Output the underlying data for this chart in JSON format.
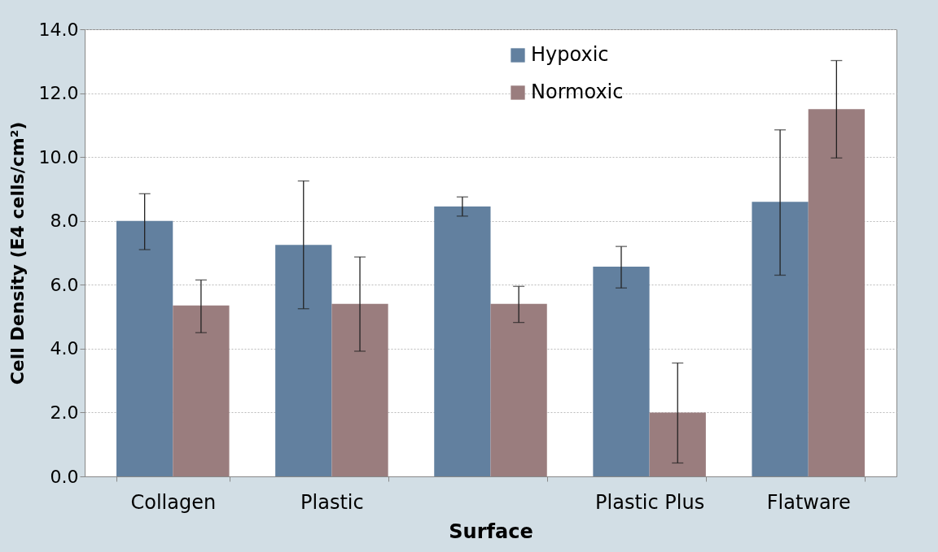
{
  "chart_data": {
    "type": "bar",
    "xlabel": "Surface",
    "ylabel": "Cell Density (E4 cells/cm²)",
    "categories": [
      "Collagen",
      "Plastic",
      null,
      "Plastic Plus",
      "Flatware"
    ],
    "series": [
      {
        "name": "Hypoxic",
        "color": "#62809f",
        "values": [
          8.0,
          7.25,
          8.45,
          6.57,
          8.6
        ],
        "errors": [
          [
            7.1,
            8.85
          ],
          [
            5.25,
            9.25
          ],
          [
            8.15,
            8.75
          ],
          [
            5.9,
            7.2
          ],
          [
            6.3,
            10.85
          ]
        ]
      },
      {
        "name": "Normoxic",
        "color": "#9a7d7e",
        "values": [
          5.35,
          5.4,
          5.4,
          2.0,
          11.5
        ],
        "errors": [
          [
            4.5,
            6.15
          ],
          [
            3.92,
            6.87
          ],
          [
            4.82,
            5.95
          ],
          [
            0.42,
            3.55
          ],
          [
            9.97,
            13.02
          ]
        ]
      }
    ],
    "ylim": [
      0,
      14
    ],
    "yticks": [
      {
        "value": 0,
        "label": "0.0"
      },
      {
        "value": 2,
        "label": "2.0"
      },
      {
        "value": 4,
        "label": "4.0"
      },
      {
        "value": 6,
        "label": "6.0"
      },
      {
        "value": 8,
        "label": "8.0"
      },
      {
        "value": 10,
        "label": "10.0"
      },
      {
        "value": 12,
        "label": "12.0"
      },
      {
        "value": 14,
        "label": "14.0"
      }
    ],
    "grid": "y",
    "legend": "top"
  }
}
